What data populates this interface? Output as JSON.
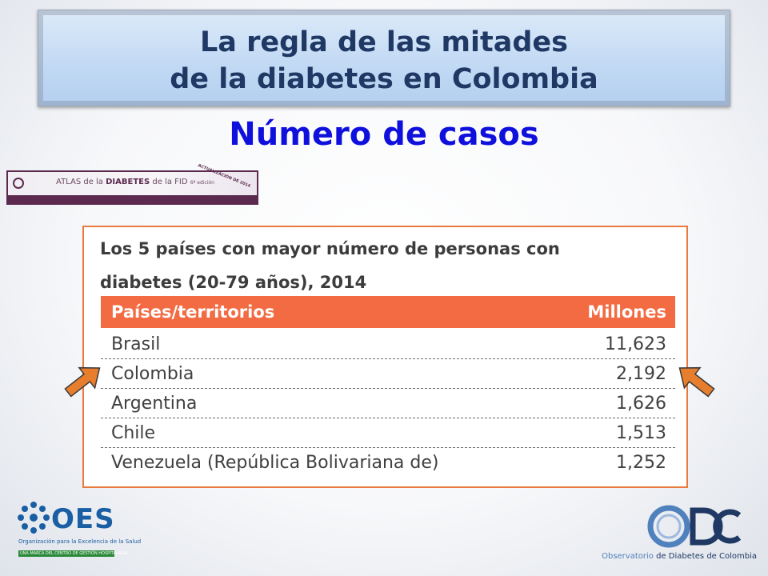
{
  "slide": {
    "title_line1": "La regla de las mitades",
    "title_line2": "de la diabetes en Colombia",
    "subtitle": "Número de casos"
  },
  "atlas_banner": {
    "text_prefix": "ATLAS de la ",
    "text_bold": "DIABETES",
    "text_suffix": " de la FID",
    "edition": "6ª edición",
    "tag": "ACTUALIZACIÓN DE 2014"
  },
  "table": {
    "caption_line1": "Los 5 países con mayor número de personas con",
    "caption_line2": "diabetes (20-79 años), 2014",
    "headers": [
      "Países/territorios",
      "Millones"
    ],
    "rows": [
      {
        "country": "Brasil",
        "value": "11,623"
      },
      {
        "country": "Colombia",
        "value": "2,192"
      },
      {
        "country": "Argentina",
        "value": "1,626"
      },
      {
        "country": "Chile",
        "value": "1,513"
      },
      {
        "country": "Venezuela (República Bolivariana de)",
        "value": "1,252"
      }
    ],
    "highlighted_row": "Colombia"
  },
  "footer": {
    "oes_name": "OES",
    "oes_tagline": "Organización para la Excelencia de la Salud",
    "oes_bar_text": "UNA MARCA DEL  CENTRO DE GESTIÓN HOSPITALARIA",
    "odc_caption_prefix": "Observatorio",
    "odc_caption_rest": " de Diabetes de Colombia"
  },
  "colors": {
    "title": "#1f3864",
    "subtitle": "#1010dd",
    "table_header_bg": "#f26b43",
    "table_border": "#e87a3e",
    "arrow_fill": "#e67e2e"
  },
  "icons": [
    "oes-logo-icon",
    "odc-logo-icon",
    "arrow-pointing-icon"
  ]
}
